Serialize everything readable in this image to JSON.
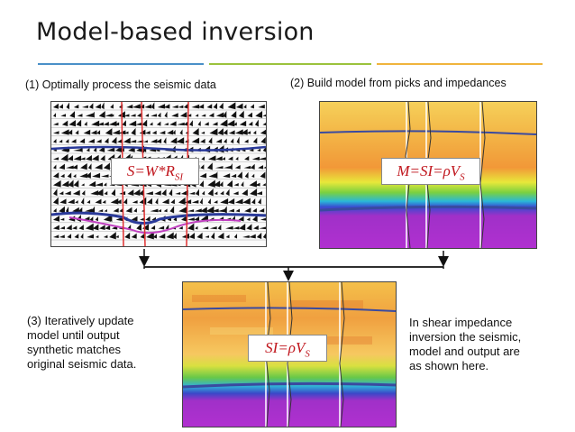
{
  "title": "Model-based inversion",
  "rule_colors": [
    "#4a90c8",
    "#9bc23c",
    "#f0b43c"
  ],
  "panels": {
    "seismic": {
      "caption": "(1) Optimally process the seismic data",
      "equation": {
        "lhs": "S",
        "rhs_main": "W*R",
        "rhs_sub": "SI"
      }
    },
    "model": {
      "caption": "(2) Build model from picks and impedances",
      "equation": {
        "lhs": "M",
        "mid": "SI",
        "rhs_main": "ρV",
        "rhs_sub": "S"
      }
    },
    "output": {
      "caption_lines": [
        "(3) Iteratively update",
        "model until output",
        "synthetic matches",
        "original seismic data."
      ],
      "equation": {
        "lhs": "SI",
        "rhs_main": "ρV",
        "rhs_sub": "S"
      }
    }
  },
  "note_lines": [
    "In shear impedance",
    "inversion the seismic,",
    "model and output are",
    "as shown here."
  ],
  "colors": {
    "equation_red": "#c0161d"
  }
}
